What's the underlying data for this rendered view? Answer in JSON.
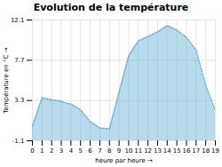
{
  "chart_data": {
    "type": "area",
    "title": "Evolution de la température",
    "x_label": "heure par heure",
    "y_label": "Température en °C",
    "x": [
      0,
      1,
      2,
      3,
      4,
      5,
      6,
      7,
      8,
      9,
      10,
      11,
      12,
      13,
      14,
      15,
      16,
      17,
      18,
      19
    ],
    "values": [
      0.5,
      3.6,
      3.4,
      3.2,
      2.9,
      2.3,
      1.0,
      0.3,
      0.2,
      4.2,
      8.2,
      9.8,
      10.3,
      10.8,
      11.5,
      11.0,
      10.2,
      8.8,
      5.0,
      2.2
    ],
    "baseline": -1.1,
    "xlim": [
      0,
      19
    ],
    "xticks": [
      0,
      1,
      2,
      3,
      4,
      5,
      6,
      7,
      8,
      9,
      10,
      11,
      12,
      13,
      14,
      15,
      16,
      17,
      18,
      19
    ],
    "ylim": [
      -1.1,
      12.1
    ],
    "yticks": [
      -1.1,
      3.3,
      7.7,
      12.1
    ],
    "color": "#60b0d0",
    "line_style": "dotted",
    "grid": true
  }
}
